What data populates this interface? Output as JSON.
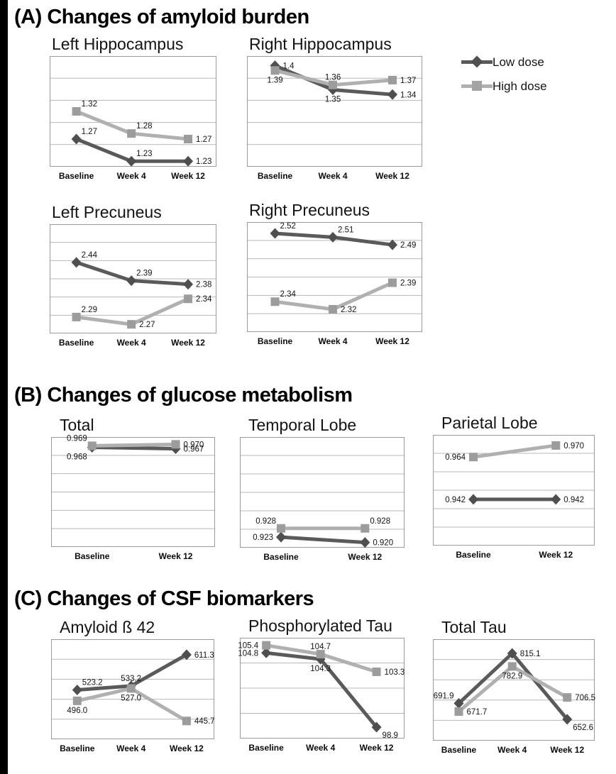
{
  "page": {
    "section_a_title": "(A) Changes of amyloid burden",
    "section_b_title": "(B) Changes of glucose metabolism",
    "section_c_title": "(C) Changes of CSF biomarkers"
  },
  "colors": {
    "low_dose_line": "#5a5a5a",
    "low_dose_marker": "#4f4f4f",
    "high_dose_line": "#b0b0b0",
    "high_dose_marker": "#9c9c9c",
    "gridline": "#b8b8b8",
    "plot_border": "#9a9a9a",
    "value_label": "#141414"
  },
  "legend": {
    "items": [
      {
        "label": "Low dose",
        "marker": "diamond",
        "color": "#5a5a5a"
      },
      {
        "label": "High dose",
        "marker": "square",
        "color": "#b0b0b0"
      }
    ]
  },
  "chart_data": [
    {
      "id": "left-hippocampus",
      "title": "Left Hippocampus",
      "type": "line",
      "categories": [
        "Baseline",
        "Week 4",
        "Week 12"
      ],
      "series": [
        {
          "name": "Low dose",
          "marker": "diamond",
          "values": [
            1.27,
            1.23,
            1.23
          ],
          "labels": [
            "1.27",
            "1.23",
            "1.23"
          ],
          "label_pos": [
            "above-right",
            "above-right",
            "right"
          ]
        },
        {
          "name": "High dose",
          "marker": "square",
          "values": [
            1.32,
            1.28,
            1.27
          ],
          "labels": [
            "1.32",
            "1.28",
            "1.27"
          ],
          "label_pos": [
            "above-right",
            "above-right",
            "right"
          ]
        }
      ],
      "ylim": [
        1.22,
        1.42
      ],
      "gridline_divisions": 5,
      "grid": true,
      "legend_position": "none"
    },
    {
      "id": "right-hippocampus",
      "title": "Right Hippocampus",
      "type": "line",
      "categories": [
        "Baseline",
        "Week 4",
        "Week 12"
      ],
      "series": [
        {
          "name": "Low dose",
          "marker": "diamond",
          "values": [
            1.4,
            1.35,
            1.34
          ],
          "labels": [
            "1.4",
            "1.35",
            "1.34"
          ],
          "label_pos": [
            "right",
            "below",
            "right"
          ]
        },
        {
          "name": "High dose",
          "marker": "square",
          "values": [
            1.39,
            1.36,
            1.37
          ],
          "labels": [
            "1.39",
            "1.36",
            "1.37"
          ],
          "label_pos": [
            "below",
            "above",
            "right"
          ]
        }
      ],
      "ylim": [
        1.19,
        1.42
      ],
      "gridline_divisions": 5,
      "grid": true,
      "legend_position": "none"
    },
    {
      "id": "left-precuneus",
      "title": "Left Precuneus",
      "type": "line",
      "categories": [
        "Baseline",
        "Week 4",
        "Week 12"
      ],
      "series": [
        {
          "name": "Low dose",
          "marker": "diamond",
          "values": [
            2.44,
            2.39,
            2.38
          ],
          "labels": [
            "2.44",
            "2.39",
            "2.38"
          ],
          "label_pos": [
            "above-right",
            "above-right",
            "right"
          ]
        },
        {
          "name": "High dose",
          "marker": "square",
          "values": [
            2.29,
            2.27,
            2.34
          ],
          "labels": [
            "2.29",
            "2.27",
            "2.34"
          ],
          "label_pos": [
            "above-right",
            "right",
            "right"
          ]
        }
      ],
      "ylim": [
        2.245,
        2.545
      ],
      "gridline_divisions": 6,
      "grid": true,
      "legend_position": "none"
    },
    {
      "id": "right-precuneus",
      "title": "Right Precuneus",
      "type": "line",
      "categories": [
        "Baseline",
        "Week 4",
        "Week 12"
      ],
      "series": [
        {
          "name": "Low dose",
          "marker": "diamond",
          "values": [
            2.52,
            2.51,
            2.49
          ],
          "labels": [
            "2.52",
            "2.51",
            "2.49"
          ],
          "label_pos": [
            "above-right",
            "above-right",
            "right"
          ]
        },
        {
          "name": "High dose",
          "marker": "square",
          "values": [
            2.34,
            2.32,
            2.39
          ],
          "labels": [
            "2.34",
            "2.32",
            "2.39"
          ],
          "label_pos": [
            "above-right",
            "right",
            "right"
          ]
        }
      ],
      "ylim": [
        2.26,
        2.55
      ],
      "gridline_divisions": 6,
      "grid": true,
      "legend_position": "none"
    },
    {
      "id": "total",
      "title": "Total",
      "type": "line",
      "categories": [
        "Baseline",
        "Week 12"
      ],
      "series": [
        {
          "name": "Low dose",
          "marker": "diamond",
          "values": [
            0.968,
            0.967
          ],
          "labels": [
            "0.968",
            "0.967"
          ],
          "label_pos": [
            "below-left",
            "right"
          ]
        },
        {
          "name": "High dose",
          "marker": "square",
          "values": [
            0.969,
            0.97
          ],
          "labels": [
            "0.969",
            "0.970"
          ],
          "label_pos": [
            "above-left",
            "right"
          ]
        }
      ],
      "ylim": [
        0.9,
        0.975
      ],
      "gridline_divisions": 6,
      "grid": true,
      "legend_position": "none"
    },
    {
      "id": "temporal-lobe",
      "title": "Temporal Lobe",
      "type": "line",
      "categories": [
        "Baseline",
        "Week 12"
      ],
      "series": [
        {
          "name": "Low dose",
          "marker": "diamond",
          "values": [
            0.923,
            0.92
          ],
          "labels": [
            "0.923",
            "0.920"
          ],
          "label_pos": [
            "left",
            "right"
          ]
        },
        {
          "name": "High dose",
          "marker": "square",
          "values": [
            0.928,
            0.928
          ],
          "labels": [
            "0.928",
            "0.928"
          ],
          "label_pos": [
            "above-left",
            "above-right"
          ]
        }
      ],
      "ylim": [
        0.917,
        0.98
      ],
      "gridline_divisions": 6,
      "grid": true,
      "legend_position": "none"
    },
    {
      "id": "parietal-lobe",
      "title": "Parietal Lobe",
      "type": "line",
      "categories": [
        "Baseline",
        "Week 12"
      ],
      "series": [
        {
          "name": "Low dose",
          "marker": "diamond",
          "values": [
            0.942,
            0.942
          ],
          "labels": [
            "0.942",
            "0.942"
          ],
          "label_pos": [
            "left",
            "right"
          ]
        },
        {
          "name": "High dose",
          "marker": "square",
          "values": [
            0.964,
            0.97
          ],
          "labels": [
            "0.964",
            "0.970"
          ],
          "label_pos": [
            "left",
            "right"
          ]
        }
      ],
      "ylim": [
        0.918,
        0.9755
      ],
      "gridline_divisions": 6,
      "grid": true,
      "legend_position": "none"
    },
    {
      "id": "amyloid-b42",
      "title": "Amyloid ß 42",
      "type": "line",
      "categories": [
        "Baseline",
        "Week 4",
        "Week 12"
      ],
      "series": [
        {
          "name": "Low dose",
          "marker": "diamond",
          "values": [
            523.2,
            533.2,
            611.3
          ],
          "labels": [
            "523.2",
            "533.2",
            "611.3"
          ],
          "label_pos": [
            "above-right",
            "above",
            "right"
          ]
        },
        {
          "name": "High dose",
          "marker": "square",
          "values": [
            496.0,
            527.0,
            445.7
          ],
          "labels": [
            "496.0",
            "527.0",
            "445.7"
          ],
          "label_pos": [
            "below",
            "below",
            "right"
          ]
        }
      ],
      "ylim": [
        400,
        650
      ],
      "gridline_divisions": 5,
      "grid": true,
      "legend_position": "none"
    },
    {
      "id": "phosphorylated-tau",
      "title": "Phosphorylated Tau",
      "type": "line",
      "categories": [
        "Baseline",
        "Week 4",
        "Week 12"
      ],
      "series": [
        {
          "name": "Low dose",
          "marker": "diamond",
          "values": [
            104.8,
            104.3,
            98.9
          ],
          "labels": [
            "104.8",
            "104.3",
            "98.9"
          ],
          "label_pos": [
            "left",
            "below",
            "below-right"
          ]
        },
        {
          "name": "High dose",
          "marker": "square",
          "values": [
            105.4,
            104.7,
            103.3
          ],
          "labels": [
            "105.4",
            "104.7",
            "103.3"
          ],
          "label_pos": [
            "left",
            "above",
            "right"
          ]
        }
      ],
      "ylim": [
        98,
        106
      ],
      "gridline_divisions": 4,
      "grid": true,
      "legend_position": "none"
    },
    {
      "id": "total-tau",
      "title": "Total Tau",
      "type": "line",
      "categories": [
        "Baseline",
        "Week 4",
        "Week 12"
      ],
      "series": [
        {
          "name": "Low dose",
          "marker": "diamond",
          "values": [
            691.9,
            815.1,
            652.6
          ],
          "labels": [
            "691.9",
            "815.1",
            "652.6"
          ],
          "label_pos": [
            "above-left",
            "right",
            "below-right"
          ]
        },
        {
          "name": "High dose",
          "marker": "square",
          "values": [
            671.7,
            782.9,
            706.5
          ],
          "labels": [
            "671.7",
            "782.9",
            "706.5"
          ],
          "label_pos": [
            "right",
            "below",
            "right"
          ]
        }
      ],
      "ylim": [
        600,
        850
      ],
      "gridline_divisions": 5,
      "grid": true,
      "legend_position": "none"
    }
  ]
}
